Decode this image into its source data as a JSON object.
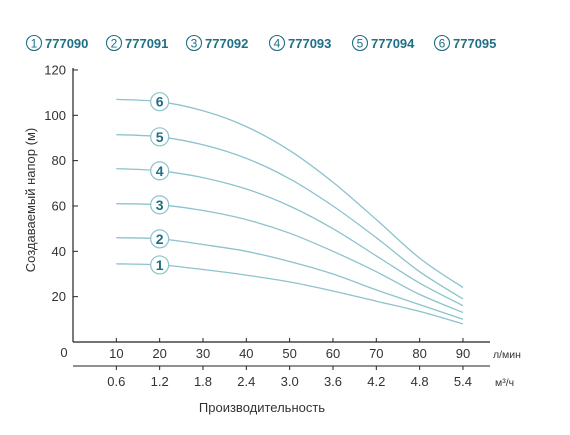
{
  "chart_data": {
    "type": "line",
    "xlabel": "Производительность",
    "ylabel": "Создаваемый напор (м)",
    "x_unit": "л/мин",
    "x2_unit": "м³/ч",
    "ylim": [
      0,
      120
    ],
    "xlim": [
      0,
      90
    ],
    "y_ticks": [
      20,
      40,
      60,
      80,
      100,
      120
    ],
    "y_tick_labels": [
      "20",
      "40",
      "60",
      "80",
      "100",
      "120"
    ],
    "x_ticks": [
      10,
      20,
      30,
      40,
      50,
      60,
      70,
      80,
      90
    ],
    "x_tick_labels": [
      "10",
      "20",
      "30",
      "40",
      "50",
      "60",
      "70",
      "80",
      "90"
    ],
    "x2_tick_labels": [
      "0.6",
      "1.2",
      "1.8",
      "2.4",
      "3.0",
      "3.6",
      "4.2",
      "4.8",
      "5.4"
    ],
    "origin_label": "0",
    "grid": false,
    "line_color": "#8cc3cc",
    "label_color": "#1f6f85",
    "series": [
      {
        "name": "777090",
        "badge": "1",
        "x": [
          10,
          20,
          30,
          40,
          50,
          60,
          70,
          80,
          90
        ],
        "values": [
          34.5,
          34,
          32,
          29.5,
          26.5,
          22.5,
          18,
          13.5,
          8
        ]
      },
      {
        "name": "777091",
        "badge": "2",
        "x": [
          10,
          20,
          30,
          40,
          50,
          60,
          70,
          80,
          90
        ],
        "values": [
          46,
          45.5,
          43,
          40,
          35.5,
          30,
          23,
          16.5,
          10
        ]
      },
      {
        "name": "777092",
        "badge": "3",
        "x": [
          10,
          20,
          30,
          40,
          50,
          60,
          70,
          80,
          90
        ],
        "values": [
          61,
          60.5,
          58,
          54,
          48,
          40,
          31,
          21,
          13
        ]
      },
      {
        "name": "777093",
        "badge": "4",
        "x": [
          10,
          20,
          30,
          40,
          50,
          60,
          70,
          80,
          90
        ],
        "values": [
          76.5,
          75.5,
          72.5,
          67.5,
          60,
          50,
          38,
          26,
          16
        ]
      },
      {
        "name": "777094",
        "badge": "5",
        "x": [
          10,
          20,
          30,
          40,
          50,
          60,
          70,
          80,
          90
        ],
        "values": [
          91.5,
          90.5,
          87,
          81,
          72,
          60,
          46,
          31,
          19
        ]
      },
      {
        "name": "777095",
        "badge": "6",
        "x": [
          10,
          20,
          30,
          40,
          50,
          60,
          70,
          80,
          90
        ],
        "values": [
          107,
          106,
          102,
          95,
          84.5,
          70.5,
          54,
          37,
          24
        ]
      }
    ]
  }
}
